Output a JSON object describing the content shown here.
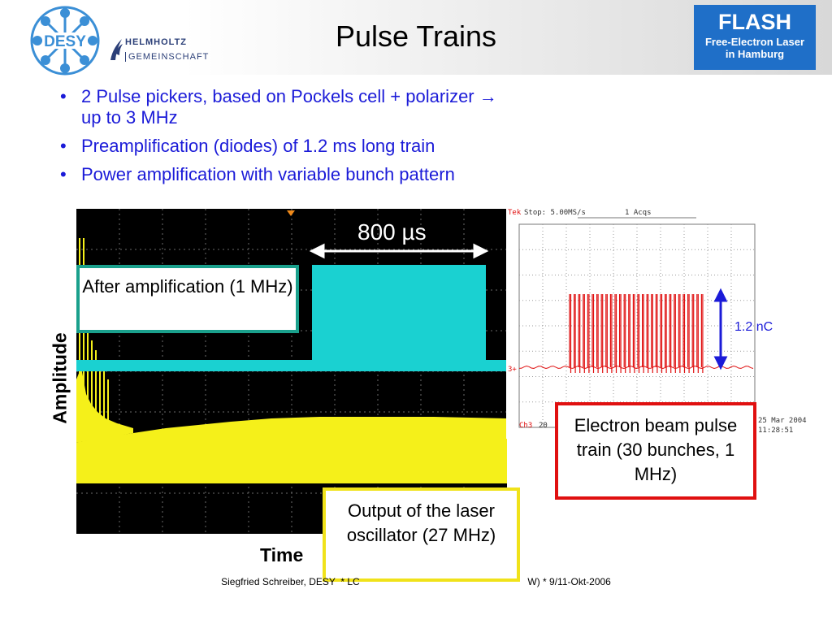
{
  "header": {
    "title": "Pulse Trains"
  },
  "logos": {
    "desy": "DESY",
    "helmholtz_line1": "HELMHOLTZ",
    "helmholtz_line2": "GEMEINSCHAFT",
    "flash_title": "FLASH",
    "flash_line1": "Free-Electron Laser",
    "flash_line2": "in Hamburg"
  },
  "bullets": [
    "2 Pulse pickers, based on Pockels cell + polarizer → up to 3 MHz",
    "Preamplification (diodes) of 1.2 ms long train",
    "Power amplification with variable bunch pattern"
  ],
  "scope_main": {
    "duration_label": "800 µs",
    "amplification_label": "After amplification (1 MHz)",
    "oscillator_label": "Output of the laser oscillator (27 MHz)",
    "y_axis_label": "Amplitude",
    "x_axis_label": "Time"
  },
  "scope_beam": {
    "status_tek": "Tek",
    "status_text": "Stop: 5.00MS/s",
    "status_acqs": "1 Acqs",
    "charge_label": "1.2 nC",
    "channel_label": "Ch3",
    "channel_value": "20",
    "date": "25 Mar 2004",
    "time": "11:28:51",
    "bunch_count": 30,
    "beam_label": "Electron beam pulse train (30 bunches, 1 MHz)"
  },
  "footer": {
    "text": "Siegfried Schreiber, DESY  * LC                                                              W) * 9/11-Okt-2006"
  },
  "colors": {
    "scope_cyan": "#1ad1d1",
    "scope_yellow": "#f5f01a",
    "beam_red": "#e01010",
    "bullet_blue": "#1b1bd8",
    "flash_blue": "#1f6fc8"
  }
}
